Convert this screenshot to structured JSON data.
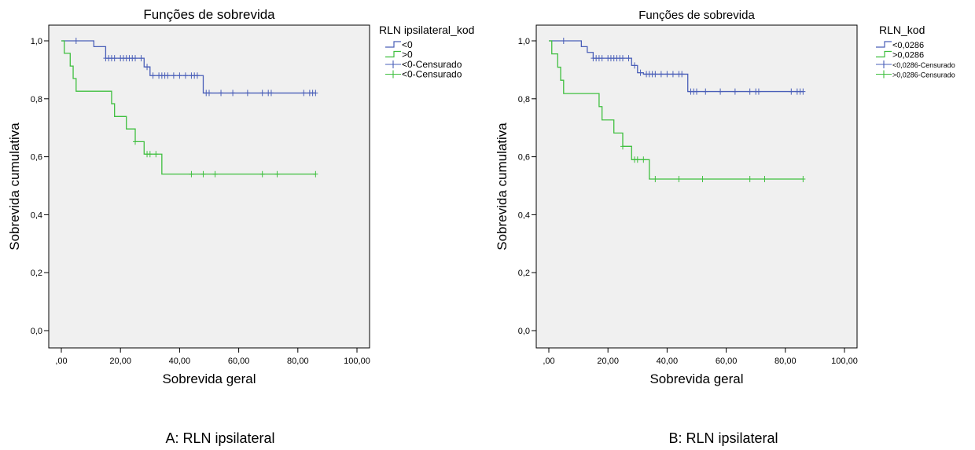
{
  "captions": [
    "A: RLN ipsilateral",
    "B: RLN ipsilateral"
  ],
  "colors": {
    "blue": "#4a5fb8",
    "green": "#3fbf3f",
    "plot_bg": "#f0f0f0"
  },
  "chart_data": [
    {
      "type": "line",
      "subtype": "kaplan-meier",
      "title": "Funções de sobrevida",
      "xlabel": "Sobrevida geral",
      "ylabel": "Sobrevida cumulativa",
      "xlim": [
        0,
        100
      ],
      "ylim": [
        0,
        1
      ],
      "xticks": [
        ",00",
        "20,00",
        "40,00",
        "60,00",
        "80,00",
        "100,00"
      ],
      "xtick_values": [
        0,
        20,
        40,
        60,
        80,
        100
      ],
      "yticks": [
        "0,0",
        "0,2",
        "0,4",
        "0,6",
        "0,8",
        "1,0"
      ],
      "ytick_values": [
        0,
        0.2,
        0.4,
        0.6,
        0.8,
        1.0
      ],
      "grid": false,
      "legend_title": "RLN ipsilateral_kod",
      "legend_position": "right",
      "legend": [
        "<0",
        ">0",
        "<0-Censurado",
        "<0-Censurado"
      ],
      "series": [
        {
          "name": "<0",
          "color": "#4a5fb8",
          "steps": [
            [
              0,
              1.0
            ],
            [
              11,
              0.98
            ],
            [
              15,
              0.94
            ],
            [
              28,
              0.91
            ],
            [
              30,
              0.88
            ],
            [
              48,
              0.82
            ],
            [
              86,
              0.82
            ]
          ],
          "censored": [
            5,
            15,
            16,
            17,
            18,
            20,
            21,
            22,
            23,
            24,
            25,
            27,
            29,
            31,
            33,
            34,
            35,
            36,
            38,
            40,
            42,
            44,
            45,
            46,
            49,
            50,
            54,
            58,
            63,
            68,
            70,
            71,
            82,
            84,
            85,
            86
          ]
        },
        {
          "name": ">0",
          "color": "#3fbf3f",
          "steps": [
            [
              0,
              1.0
            ],
            [
              1,
              0.957
            ],
            [
              3,
              0.913
            ],
            [
              4,
              0.87
            ],
            [
              5,
              0.826
            ],
            [
              17,
              0.783
            ],
            [
              18,
              0.739
            ],
            [
              22,
              0.696
            ],
            [
              25,
              0.652
            ],
            [
              28,
              0.609
            ],
            [
              34,
              0.54
            ],
            [
              86,
              0.54
            ]
          ],
          "censored": [
            25,
            29,
            30,
            32,
            44,
            48,
            52,
            68,
            73,
            86
          ]
        }
      ]
    },
    {
      "type": "line",
      "subtype": "kaplan-meier",
      "title": "Funções de sobrevida",
      "xlabel": "Sobrevida geral",
      "ylabel": "Sobrevida cumulativa",
      "xlim": [
        0,
        100
      ],
      "ylim": [
        0,
        1
      ],
      "xticks": [
        ",00",
        "20,00",
        "40,00",
        "60,00",
        "80,00",
        "100,00"
      ],
      "xtick_values": [
        0,
        20,
        40,
        60,
        80,
        100
      ],
      "yticks": [
        "0,0",
        "0,2",
        "0,4",
        "0,6",
        "0,8",
        "1,0"
      ],
      "ytick_values": [
        0,
        0.2,
        0.4,
        0.6,
        0.8,
        1.0
      ],
      "grid": false,
      "legend_title": "RLN_kod",
      "legend_position": "right",
      "legend": [
        "<0,0286",
        ">0,0286",
        "<0,0286-Censurado",
        ">0,0286-Censurado"
      ],
      "series": [
        {
          "name": "<0,0286",
          "color": "#4a5fb8",
          "steps": [
            [
              0,
              1.0
            ],
            [
              11,
              0.98
            ],
            [
              13,
              0.96
            ],
            [
              15,
              0.94
            ],
            [
              28,
              0.915
            ],
            [
              30,
              0.89
            ],
            [
              32,
              0.885
            ],
            [
              47,
              0.825
            ],
            [
              86,
              0.825
            ]
          ],
          "censored": [
            5,
            15,
            16,
            17,
            18,
            20,
            21,
            22,
            23,
            24,
            25,
            27,
            29,
            31,
            33,
            34,
            35,
            36,
            38,
            40,
            42,
            44,
            45,
            48,
            49,
            50,
            53,
            58,
            63,
            68,
            70,
            71,
            82,
            84,
            85,
            86
          ]
        },
        {
          "name": ">0,0286",
          "color": "#3fbf3f",
          "steps": [
            [
              0,
              1.0
            ],
            [
              1,
              0.955
            ],
            [
              3,
              0.909
            ],
            [
              4,
              0.864
            ],
            [
              5,
              0.818
            ],
            [
              17,
              0.773
            ],
            [
              18,
              0.727
            ],
            [
              22,
              0.682
            ],
            [
              25,
              0.636
            ],
            [
              28,
              0.59
            ],
            [
              34,
              0.523
            ],
            [
              86,
              0.523
            ]
          ],
          "censored": [
            25,
            29,
            30,
            32,
            36,
            44,
            52,
            68,
            73,
            86
          ]
        }
      ]
    }
  ]
}
